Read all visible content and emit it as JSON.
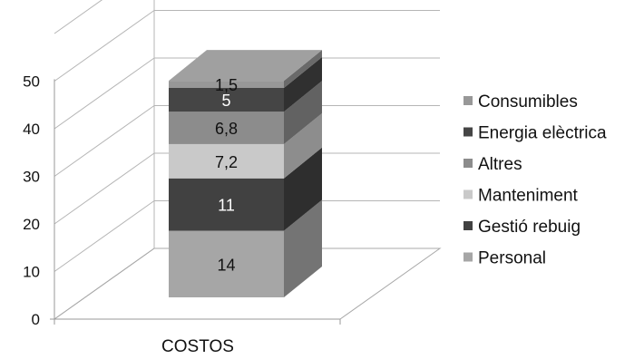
{
  "chart_data": {
    "type": "bar",
    "stacked": true,
    "three_d": true,
    "categories": [
      "COSTOS"
    ],
    "series": [
      {
        "name": "Personal",
        "values": [
          14
        ],
        "label": "14",
        "color": "#a6a6a6"
      },
      {
        "name": "Gestió rebuig",
        "values": [
          11
        ],
        "label": "11",
        "color": "#414141"
      },
      {
        "name": "Manteniment",
        "values": [
          7.2
        ],
        "label": "7,2",
        "color": "#c9c9c9"
      },
      {
        "name": "Altres",
        "values": [
          6.8
        ],
        "label": "6,8",
        "color": "#8c8c8c"
      },
      {
        "name": "Energia elèctrica",
        "values": [
          5
        ],
        "label": "5",
        "color": "#454545"
      },
      {
        "name": "Consumibles",
        "values": [
          1.5
        ],
        "label": "1,5",
        "color": "#989898"
      }
    ],
    "legend_order": [
      "Consumibles",
      "Energia elèctrica",
      "Altres",
      "Manteniment",
      "Gestió rebuig",
      "Personal"
    ],
    "y_ticks": [
      "0",
      "10",
      "20",
      "30",
      "40",
      "50"
    ],
    "ylim": [
      0,
      60
    ],
    "grid": true,
    "legend_position": "right"
  }
}
